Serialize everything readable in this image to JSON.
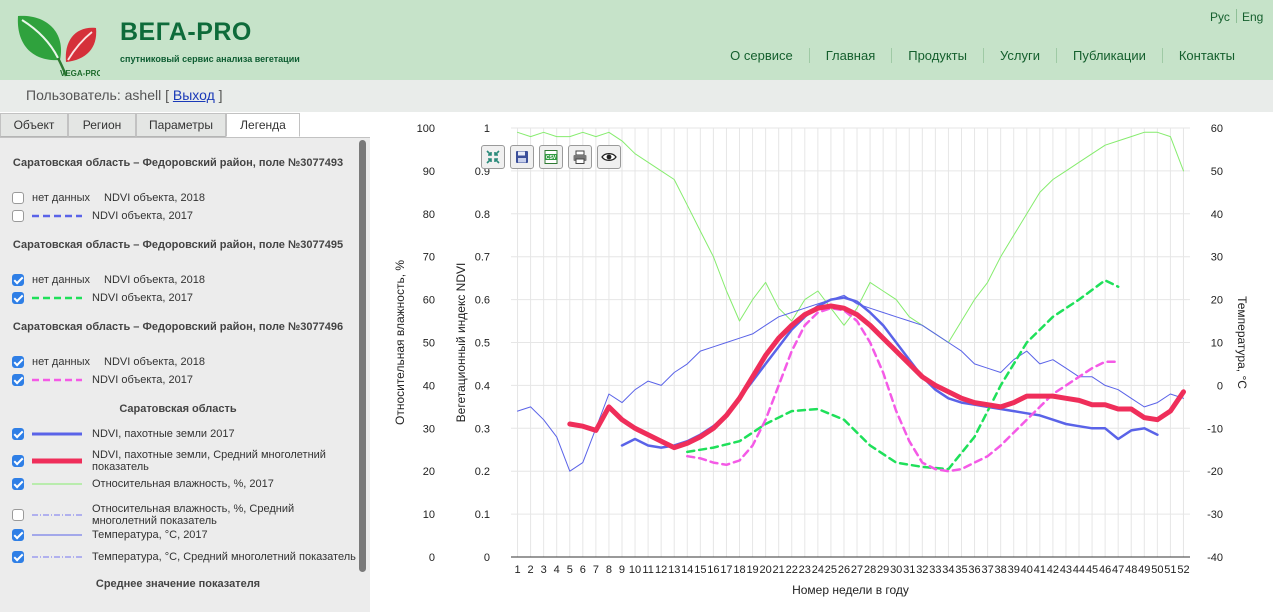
{
  "header": {
    "brand": "ВЕГА-PRO",
    "tagline": "спутниковый сервис анализа вегетации",
    "logo_text": "VEGA-PRO",
    "lang": [
      "Рус",
      "Eng"
    ],
    "nav": [
      "О сервисе",
      "Главная",
      "Продукты",
      "Услуги",
      "Публикации",
      "Контакты"
    ]
  },
  "user": {
    "label": "Пользователь: ashell [",
    "logout": "Выход",
    "tail": "]"
  },
  "tabs": [
    "Объект",
    "Регион",
    "Параметры",
    "Легенда"
  ],
  "legend": {
    "sections": [
      {
        "title": "Саратовская область – Федоровский район, поле №3077493",
        "rows": [
          {
            "checked": false,
            "nodata": "нет данных",
            "label": "NDVI объекта, 2018"
          },
          {
            "checked": false,
            "label": "NDVI объекта, 2017",
            "color": "#5a63e8",
            "style": "dashed"
          }
        ]
      },
      {
        "title": "Саратовская область – Федоровский район, поле №3077495",
        "rows": [
          {
            "checked": true,
            "nodata": "нет данных",
            "label": "NDVI объекта, 2018"
          },
          {
            "checked": true,
            "label": "NDVI объекта, 2017",
            "color": "#1fe05a",
            "style": "dashed"
          }
        ]
      },
      {
        "title": "Саратовская область – Федоровский район, поле №3077496",
        "rows": [
          {
            "checked": true,
            "nodata": "нет данных",
            "label": "NDVI объекта, 2018"
          },
          {
            "checked": true,
            "label": "NDVI объекта, 2017",
            "color": "#f45ae6",
            "style": "dashed"
          }
        ]
      },
      {
        "title": "Саратовская область",
        "rows": [
          {
            "checked": true,
            "label": "NDVI, пахотные земли 2017",
            "color": "#5a63e8",
            "style": "solid-thick"
          },
          {
            "checked": true,
            "label": "NDVI, пахотные земли, Средний многолетний показатель",
            "color": "#ef2e5a",
            "style": "solid-heavy"
          },
          {
            "checked": true,
            "label": "Относительная влажность, %, 2017",
            "color": "#86ec6e",
            "style": "solid-thin"
          },
          {
            "checked": false,
            "label": "Относительная влажность, %, Средний многолетний показатель",
            "color": "#8c8cf0",
            "style": "dashdot"
          },
          {
            "checked": true,
            "label": "Температура, °C, 2017",
            "color": "#5a63e8",
            "style": "solid-thin"
          },
          {
            "checked": true,
            "label": "Температура, °C, Средний многолетний показатель",
            "color": "#8c8cf0",
            "style": "dashdot"
          }
        ]
      },
      {
        "title": "Среднее значение показателя",
        "rows": []
      }
    ]
  },
  "toolbar": [
    "collapse-icon",
    "save-icon",
    "csv-icon",
    "print-icon",
    "eye-icon"
  ],
  "toolbar_csv": "CSV",
  "chart_data": {
    "type": "line",
    "xlabel": "Номер недели в году",
    "ylabel_left": "Относительная влажность, %",
    "ylabel_ndvi": "Вегетационный индекс NDVI",
    "ylabel_right": "Температура, °C",
    "x_range": [
      1,
      52
    ],
    "ylim_humidity": [
      0,
      100
    ],
    "ylim_ndvi": [
      0,
      1
    ],
    "ylim_temperature": [
      -40,
      60
    ],
    "grid": true,
    "series": [
      {
        "name": "NDVI, пахотные земли 2017",
        "axis": "ndvi",
        "color": "#5a63e8",
        "style": "solid",
        "x": [
          9,
          10,
          11,
          12,
          13,
          14,
          15,
          16,
          17,
          18,
          19,
          20,
          21,
          22,
          23,
          24,
          25,
          26,
          27,
          28,
          29,
          30,
          31,
          32,
          33,
          34,
          35,
          36,
          37,
          38,
          39,
          40,
          41,
          42,
          43,
          44,
          45,
          46,
          47,
          48,
          49,
          50
        ],
        "y": [
          0.26,
          0.275,
          0.26,
          0.255,
          0.26,
          0.27,
          0.285,
          0.305,
          0.33,
          0.37,
          0.41,
          0.45,
          0.49,
          0.53,
          0.56,
          0.585,
          0.6,
          0.605,
          0.595,
          0.57,
          0.54,
          0.5,
          0.46,
          0.42,
          0.39,
          0.37,
          0.36,
          0.355,
          0.35,
          0.345,
          0.34,
          0.335,
          0.33,
          0.32,
          0.31,
          0.305,
          0.3,
          0.3,
          0.275,
          0.295,
          0.3,
          0.285
        ]
      },
      {
        "name": "NDVI, пахотные земли, Средний многолетний показатель",
        "axis": "ndvi",
        "color": "#ef2e5a",
        "style": "heavy",
        "x": [
          5,
          6,
          7,
          8,
          9,
          10,
          11,
          12,
          13,
          14,
          15,
          16,
          17,
          18,
          19,
          20,
          21,
          22,
          23,
          24,
          25,
          26,
          27,
          28,
          29,
          30,
          31,
          32,
          33,
          34,
          35,
          36,
          37,
          38,
          39,
          40,
          41,
          42,
          43,
          44,
          45,
          46,
          47,
          48,
          49,
          50,
          51,
          52
        ],
        "y": [
          0.31,
          0.305,
          0.295,
          0.35,
          0.32,
          0.3,
          0.285,
          0.27,
          0.255,
          0.265,
          0.28,
          0.3,
          0.33,
          0.37,
          0.42,
          0.47,
          0.51,
          0.54,
          0.565,
          0.58,
          0.585,
          0.58,
          0.565,
          0.54,
          0.51,
          0.48,
          0.45,
          0.42,
          0.4,
          0.385,
          0.37,
          0.36,
          0.355,
          0.35,
          0.36,
          0.375,
          0.375,
          0.375,
          0.37,
          0.365,
          0.355,
          0.355,
          0.345,
          0.345,
          0.325,
          0.32,
          0.34,
          0.385
        ]
      },
      {
        "name": "NDVI объекта, 2017 (поле №3077495)",
        "axis": "ndvi",
        "color": "#1fe05a",
        "style": "dashed",
        "x": [
          14,
          16,
          18,
          20,
          22,
          24,
          26,
          28,
          30,
          32,
          34,
          36,
          38,
          40,
          42,
          44,
          46,
          47
        ],
        "y": [
          0.245,
          0.255,
          0.27,
          0.31,
          0.34,
          0.345,
          0.32,
          0.26,
          0.22,
          0.21,
          0.205,
          0.28,
          0.4,
          0.5,
          0.56,
          0.6,
          0.645,
          0.63
        ]
      },
      {
        "name": "NDVI объекта, 2017 (поле №3077496)",
        "axis": "ndvi",
        "color": "#f45ae6",
        "style": "dashed",
        "x": [
          14,
          15,
          16,
          17,
          18,
          19,
          20,
          21,
          22,
          23,
          24,
          25,
          26,
          27,
          28,
          29,
          30,
          31,
          32,
          33,
          34,
          35,
          36,
          37,
          38,
          39,
          40,
          41,
          42,
          43,
          44,
          45,
          46,
          47
        ],
        "y": [
          0.235,
          0.23,
          0.22,
          0.215,
          0.225,
          0.26,
          0.32,
          0.4,
          0.48,
          0.54,
          0.57,
          0.58,
          0.575,
          0.55,
          0.5,
          0.43,
          0.34,
          0.27,
          0.22,
          0.205,
          0.2,
          0.205,
          0.22,
          0.235,
          0.26,
          0.29,
          0.32,
          0.35,
          0.38,
          0.4,
          0.42,
          0.44,
          0.455,
          0.455
        ]
      },
      {
        "name": "Температура, °C, 2017",
        "axis": "temperature",
        "color": "#5a63e8",
        "style": "thin",
        "x": [
          1,
          2,
          3,
          4,
          5,
          6,
          7,
          8,
          9,
          10,
          11,
          12,
          13,
          14,
          15,
          16,
          17,
          18,
          19,
          20,
          21,
          22,
          23,
          24,
          25,
          26,
          27,
          28,
          29,
          30,
          31,
          32,
          33,
          34,
          35,
          36,
          37,
          38,
          39,
          40,
          41,
          42,
          43,
          44,
          45,
          46,
          47,
          48,
          49,
          50,
          51,
          52
        ],
        "y": [
          -6,
          -5,
          -8,
          -12,
          -20,
          -18,
          -10,
          -2,
          -4,
          -1,
          1,
          0,
          3,
          5,
          8,
          9,
          10,
          11,
          12,
          14,
          16,
          17,
          18,
          19,
          20,
          21,
          19,
          18,
          17,
          16,
          15,
          14,
          12,
          10,
          8,
          5,
          4,
          3,
          6,
          8,
          5,
          6,
          4,
          2,
          2,
          0,
          -1,
          -3,
          -5,
          -4,
          -2,
          -3
        ]
      },
      {
        "name": "Относительная влажность, %, 2017",
        "axis": "humidity",
        "color": "#86ec6e",
        "style": "thin",
        "x": [
          1,
          2,
          3,
          4,
          5,
          6,
          7,
          8,
          9,
          10,
          11,
          12,
          13,
          14,
          15,
          16,
          17,
          18,
          19,
          20,
          21,
          22,
          23,
          24,
          25,
          26,
          27,
          28,
          29,
          30,
          31,
          32,
          33,
          34,
          35,
          36,
          37,
          38,
          39,
          40,
          41,
          42,
          43,
          44,
          45,
          46,
          47,
          48,
          49,
          50,
          51,
          52
        ],
        "y": [
          99,
          98,
          99,
          98,
          98,
          99,
          98,
          99,
          97,
          94,
          92,
          90,
          88,
          82,
          76,
          70,
          62,
          55,
          60,
          64,
          58,
          55,
          60,
          62,
          58,
          54,
          58,
          64,
          62,
          60,
          56,
          54,
          52,
          50,
          55,
          60,
          64,
          70,
          75,
          80,
          85,
          88,
          90,
          92,
          94,
          96,
          97,
          98,
          99,
          99,
          98,
          90
        ]
      }
    ]
  }
}
